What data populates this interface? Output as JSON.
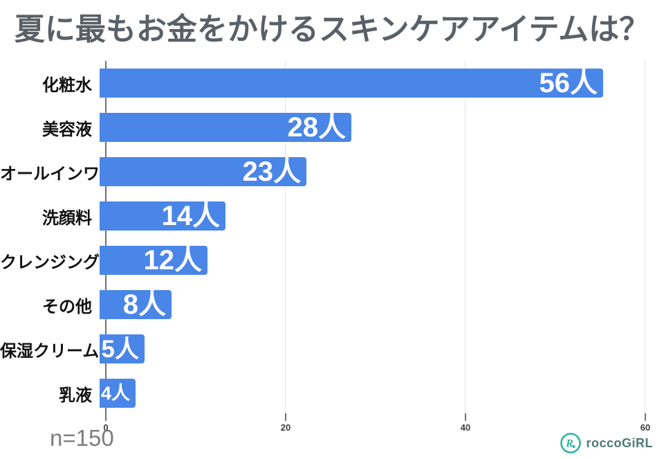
{
  "title": "夏に最もお金をかけるスキンケアアイテムは？",
  "chart_data": {
    "type": "bar",
    "orientation": "horizontal",
    "title": "夏に最もお金をかけるスキンケアアイテムは？",
    "categories": [
      "化粧水",
      "美容液",
      "オールインワン",
      "洗顔料",
      "クレンジング",
      "その他",
      "保湿クリーム",
      "乳液"
    ],
    "values": [
      56,
      28,
      23,
      14,
      12,
      8,
      5,
      4
    ],
    "value_labels": [
      "56人",
      "28人",
      "23人",
      "14人",
      "12人",
      "8人",
      "5人",
      "4人"
    ],
    "value_suffix": "人",
    "xlabel": "",
    "ylabel": "",
    "xlim": [
      0,
      60
    ],
    "x_ticks": [
      0,
      20,
      40,
      60
    ],
    "x_tick_labels": [
      "0",
      "20",
      "40",
      "60"
    ],
    "grid": true,
    "legend": false,
    "bar_color": "#4a86e8",
    "value_label_color": "#ffffff"
  },
  "footer": {
    "sample_size": "n=150",
    "logo_text": "roccoGiRL",
    "logo_color": "#2fb3a6"
  }
}
